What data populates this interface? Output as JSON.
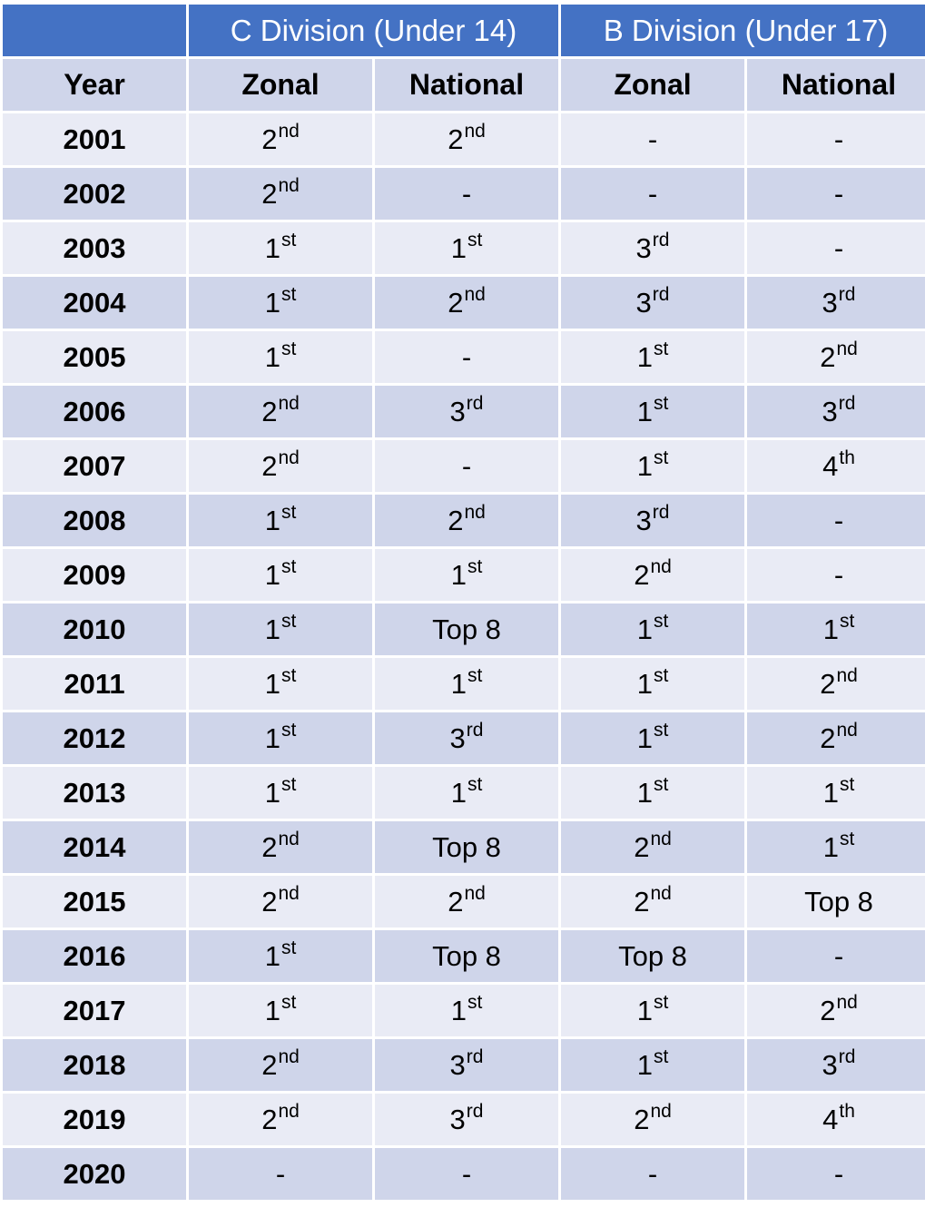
{
  "header": {
    "corner": "",
    "c_division": "C Division (Under 14)",
    "b_division": "B Division (Under 17)",
    "year": "Year",
    "c_zonal": "Zonal",
    "c_national": "National",
    "b_zonal": "Zonal",
    "b_national": "National"
  },
  "rows": [
    {
      "year": "2001",
      "c_zonal": [
        "2",
        "nd"
      ],
      "c_national": [
        "2",
        "nd"
      ],
      "b_zonal": [
        "-",
        ""
      ],
      "b_national": [
        "-",
        ""
      ]
    },
    {
      "year": "2002",
      "c_zonal": [
        "2",
        "nd"
      ],
      "c_national": [
        "-",
        ""
      ],
      "b_zonal": [
        "-",
        ""
      ],
      "b_national": [
        "-",
        ""
      ]
    },
    {
      "year": "2003",
      "c_zonal": [
        "1",
        "st"
      ],
      "c_national": [
        "1",
        "st"
      ],
      "b_zonal": [
        "3",
        "rd"
      ],
      "b_national": [
        "-",
        ""
      ]
    },
    {
      "year": "2004",
      "c_zonal": [
        "1",
        "st"
      ],
      "c_national": [
        "2",
        "nd"
      ],
      "b_zonal": [
        "3",
        "rd"
      ],
      "b_national": [
        "3",
        "rd"
      ]
    },
    {
      "year": "2005",
      "c_zonal": [
        "1",
        "st"
      ],
      "c_national": [
        "-",
        ""
      ],
      "b_zonal": [
        "1",
        "st"
      ],
      "b_national": [
        "2",
        "nd"
      ]
    },
    {
      "year": "2006",
      "c_zonal": [
        "2",
        "nd"
      ],
      "c_national": [
        "3",
        "rd"
      ],
      "b_zonal": [
        "1",
        "st"
      ],
      "b_national": [
        "3",
        "rd"
      ]
    },
    {
      "year": "2007",
      "c_zonal": [
        "2",
        "nd"
      ],
      "c_national": [
        "-",
        ""
      ],
      "b_zonal": [
        "1",
        "st"
      ],
      "b_national": [
        "4",
        "th"
      ]
    },
    {
      "year": "2008",
      "c_zonal": [
        "1",
        "st"
      ],
      "c_national": [
        "2",
        "nd"
      ],
      "b_zonal": [
        "3",
        "rd"
      ],
      "b_national": [
        "-",
        ""
      ]
    },
    {
      "year": "2009",
      "c_zonal": [
        "1",
        "st"
      ],
      "c_national": [
        "1",
        "st"
      ],
      "b_zonal": [
        "2",
        "nd"
      ],
      "b_national": [
        "-",
        ""
      ]
    },
    {
      "year": "2010",
      "c_zonal": [
        "1",
        "st"
      ],
      "c_national": [
        "Top 8",
        ""
      ],
      "b_zonal": [
        "1",
        "st"
      ],
      "b_national": [
        "1",
        "st"
      ]
    },
    {
      "year": "2011",
      "c_zonal": [
        "1",
        "st"
      ],
      "c_national": [
        "1",
        "st"
      ],
      "b_zonal": [
        "1",
        "st"
      ],
      "b_national": [
        "2",
        "nd"
      ]
    },
    {
      "year": "2012",
      "c_zonal": [
        "1",
        "st"
      ],
      "c_national": [
        "3",
        "rd"
      ],
      "b_zonal": [
        "1",
        "st"
      ],
      "b_national": [
        "2",
        "nd"
      ]
    },
    {
      "year": "2013",
      "c_zonal": [
        "1",
        "st"
      ],
      "c_national": [
        "1",
        "st"
      ],
      "b_zonal": [
        "1",
        "st"
      ],
      "b_national": [
        "1",
        "st"
      ]
    },
    {
      "year": "2014",
      "c_zonal": [
        "2",
        "nd"
      ],
      "c_national": [
        "Top 8",
        ""
      ],
      "b_zonal": [
        "2",
        "nd"
      ],
      "b_national": [
        "1",
        "st"
      ]
    },
    {
      "year": "2015",
      "c_zonal": [
        "2",
        "nd"
      ],
      "c_national": [
        "2",
        "nd"
      ],
      "b_zonal": [
        "2",
        "nd"
      ],
      "b_national": [
        "Top 8",
        ""
      ]
    },
    {
      "year": "2016",
      "c_zonal": [
        "1",
        "st"
      ],
      "c_national": [
        "Top 8",
        ""
      ],
      "b_zonal": [
        "Top 8",
        ""
      ],
      "b_national": [
        "-",
        ""
      ]
    },
    {
      "year": "2017",
      "c_zonal": [
        "1",
        "st"
      ],
      "c_national": [
        "1",
        "st"
      ],
      "b_zonal": [
        "1",
        "st"
      ],
      "b_national": [
        "2",
        "nd"
      ]
    },
    {
      "year": "2018",
      "c_zonal": [
        "2",
        "nd"
      ],
      "c_national": [
        "3",
        "rd"
      ],
      "b_zonal": [
        "1",
        "st"
      ],
      "b_national": [
        "3",
        "rd"
      ]
    },
    {
      "year": "2019",
      "c_zonal": [
        "2",
        "nd"
      ],
      "c_national": [
        "3",
        "rd"
      ],
      "b_zonal": [
        "2",
        "nd"
      ],
      "b_national": [
        "4",
        "th"
      ]
    },
    {
      "year": "2020",
      "c_zonal": [
        "-",
        ""
      ],
      "c_national": [
        "-",
        ""
      ],
      "b_zonal": [
        "-",
        ""
      ],
      "b_national": [
        "-",
        ""
      ]
    }
  ],
  "colors": {
    "header_blue": "#4472c4",
    "row_light": "#e9ebf5",
    "row_dark": "#cfd5ea"
  }
}
